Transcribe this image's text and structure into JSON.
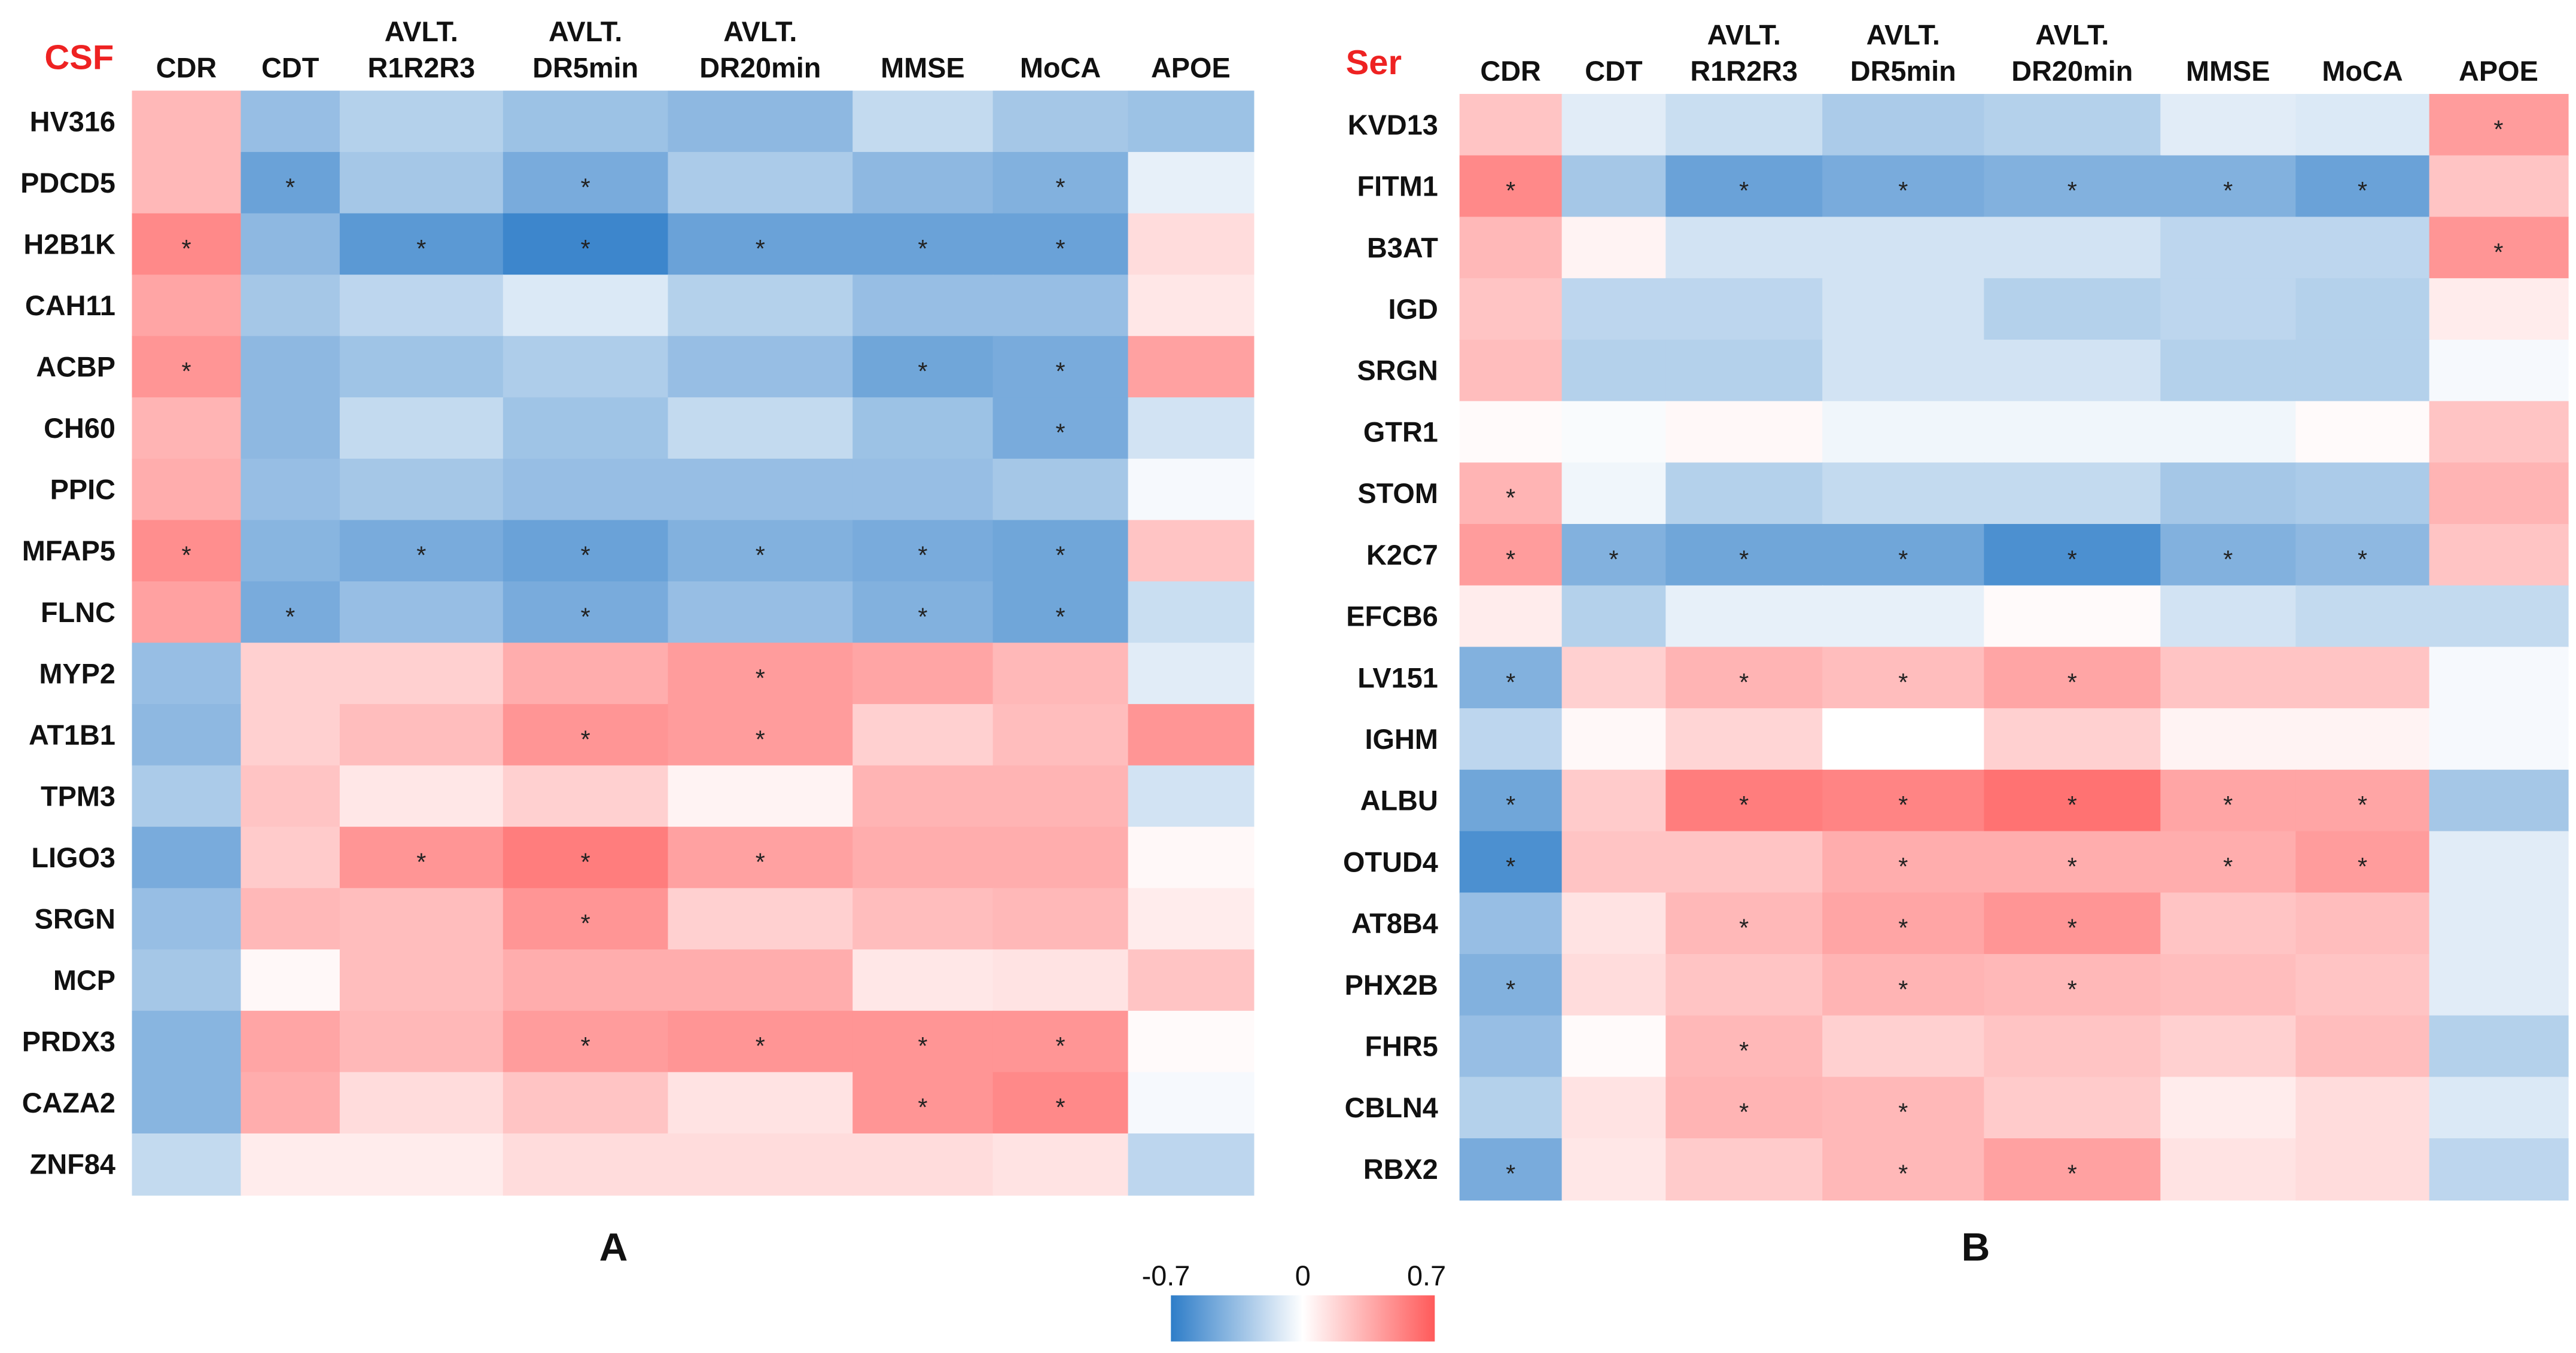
{
  "chart_data": [
    {
      "type": "heatmap",
      "title": "CSF",
      "panel_label": "A",
      "columns": [
        "CDR",
        "CDT",
        "AVLT. R1R2R3",
        "AVLT. DR5min",
        "AVLT. DR20min",
        "MMSE",
        "MoCA",
        "APOE"
      ],
      "rows": [
        "HV316",
        "PDCD5",
        "H2B1K",
        "CAH11",
        "ACBP",
        "CH60",
        "PPIC",
        "MFAP5",
        "FLNC",
        "MYP2",
        "AT1B1",
        "TPM3",
        "LIGO3",
        "SRGN",
        "MCP",
        "PRDX3",
        "CAZA2",
        "ZNF84"
      ],
      "values": [
        [
          0.3,
          -0.35,
          -0.25,
          -0.33,
          -0.38,
          -0.2,
          -0.3,
          -0.33
        ],
        [
          0.3,
          -0.5,
          -0.3,
          -0.45,
          -0.28,
          -0.38,
          -0.42,
          -0.08
        ],
        [
          0.5,
          -0.38,
          -0.55,
          -0.65,
          -0.5,
          -0.5,
          -0.5,
          0.15
        ],
        [
          0.38,
          -0.3,
          -0.22,
          -0.12,
          -0.25,
          -0.35,
          -0.35,
          0.1
        ],
        [
          0.45,
          -0.38,
          -0.32,
          -0.27,
          -0.35,
          -0.48,
          -0.45,
          0.4
        ],
        [
          0.32,
          -0.38,
          -0.2,
          -0.32,
          -0.2,
          -0.33,
          -0.45,
          -0.15
        ],
        [
          0.35,
          -0.35,
          -0.3,
          -0.35,
          -0.35,
          -0.35,
          -0.3,
          -0.03
        ],
        [
          0.48,
          -0.4,
          -0.45,
          -0.5,
          -0.42,
          -0.45,
          -0.48,
          0.25
        ],
        [
          0.4,
          -0.45,
          -0.35,
          -0.45,
          -0.35,
          -0.42,
          -0.48,
          -0.18
        ],
        [
          -0.35,
          0.2,
          0.2,
          0.35,
          0.42,
          0.38,
          0.3,
          -0.1
        ],
        [
          -0.38,
          0.2,
          0.28,
          0.45,
          0.42,
          0.2,
          0.28,
          0.45
        ],
        [
          -0.28,
          0.25,
          0.1,
          0.2,
          0.05,
          0.32,
          0.32,
          -0.15
        ],
        [
          -0.45,
          0.22,
          0.45,
          0.55,
          0.4,
          0.35,
          0.35,
          0.03
        ],
        [
          -0.35,
          0.3,
          0.28,
          0.45,
          0.2,
          0.28,
          0.3,
          0.08
        ],
        [
          -0.3,
          0.03,
          0.28,
          0.35,
          0.35,
          0.1,
          0.12,
          0.25
        ],
        [
          -0.4,
          0.38,
          0.3,
          0.42,
          0.45,
          0.45,
          0.45,
          0.02
        ],
        [
          -0.4,
          0.35,
          0.15,
          0.25,
          0.12,
          0.45,
          0.5,
          -0.03
        ],
        [
          -0.2,
          0.08,
          0.08,
          0.15,
          0.15,
          0.15,
          0.12,
          -0.22
        ]
      ],
      "significant": [
        [],
        [
          1,
          3,
          6
        ],
        [
          0,
          2,
          3,
          4,
          5,
          6
        ],
        [],
        [
          0,
          5,
          6
        ],
        [
          6
        ],
        [],
        [
          0,
          2,
          3,
          4,
          5,
          6
        ],
        [
          1,
          3,
          5,
          6
        ],
        [
          4
        ],
        [
          3,
          4
        ],
        [],
        [
          2,
          3,
          4
        ],
        [
          3
        ],
        [],
        [
          3,
          4,
          5,
          6
        ],
        [
          5,
          6
        ],
        []
      ]
    },
    {
      "type": "heatmap",
      "title": "Ser",
      "panel_label": "B",
      "columns": [
        "CDR",
        "CDT",
        "AVLT. R1R2R3",
        "AVLT. DR5min",
        "AVLT. DR20min",
        "MMSE",
        "MoCA",
        "APOE"
      ],
      "rows": [
        "KVD13",
        "FITM1",
        "B3AT",
        "IGD",
        "SRGN",
        "GTR1",
        "STOM",
        "K2C7",
        "EFCB6",
        "LV151",
        "IGHM",
        "ALBU",
        "OTUD4",
        "AT8B4",
        "PHX2B",
        "FHR5",
        "CBLN4",
        "RBX2"
      ],
      "values": [
        [
          0.25,
          -0.1,
          -0.18,
          -0.28,
          -0.25,
          -0.1,
          -0.12,
          0.42
        ],
        [
          0.5,
          -0.3,
          -0.5,
          -0.45,
          -0.42,
          -0.42,
          -0.5,
          0.25
        ],
        [
          0.3,
          0.05,
          -0.15,
          -0.15,
          -0.15,
          -0.22,
          -0.22,
          0.45
        ],
        [
          0.25,
          -0.22,
          -0.22,
          -0.15,
          -0.25,
          -0.22,
          -0.25,
          0.08
        ],
        [
          0.28,
          -0.25,
          -0.25,
          -0.15,
          -0.15,
          -0.25,
          -0.25,
          -0.03
        ],
        [
          0.02,
          -0.02,
          0.03,
          -0.05,
          -0.05,
          -0.05,
          0.02,
          0.25
        ],
        [
          0.32,
          -0.05,
          -0.25,
          -0.2,
          -0.2,
          -0.3,
          -0.28,
          0.32
        ],
        [
          0.42,
          -0.42,
          -0.48,
          -0.48,
          -0.6,
          -0.42,
          -0.38,
          0.25
        ],
        [
          0.08,
          -0.25,
          -0.08,
          -0.08,
          0.02,
          -0.15,
          -0.2,
          -0.2
        ],
        [
          -0.42,
          0.2,
          0.32,
          0.28,
          0.38,
          0.25,
          0.25,
          -0.03
        ],
        [
          -0.22,
          0.03,
          0.18,
          0.0,
          0.2,
          0.05,
          0.05,
          -0.03
        ],
        [
          -0.48,
          0.22,
          0.55,
          0.52,
          0.6,
          0.38,
          0.38,
          -0.3
        ],
        [
          -0.6,
          0.25,
          0.25,
          0.35,
          0.35,
          0.35,
          0.42,
          -0.1
        ],
        [
          -0.35,
          0.12,
          0.3,
          0.38,
          0.45,
          0.25,
          0.28,
          -0.1
        ],
        [
          -0.42,
          0.15,
          0.25,
          0.32,
          0.3,
          0.28,
          0.25,
          -0.1
        ],
        [
          -0.35,
          0.02,
          0.3,
          0.2,
          0.25,
          0.2,
          0.28,
          -0.25
        ],
        [
          -0.25,
          0.12,
          0.32,
          0.3,
          0.22,
          0.08,
          0.15,
          -0.12
        ],
        [
          -0.45,
          0.1,
          0.22,
          0.3,
          0.4,
          0.12,
          0.15,
          -0.22
        ]
      ],
      "significant": [
        [
          7
        ],
        [
          0,
          2,
          3,
          4,
          5,
          6
        ],
        [
          7
        ],
        [],
        [],
        [],
        [
          0
        ],
        [
          0,
          1,
          2,
          3,
          4,
          5,
          6
        ],
        [],
        [
          0,
          2,
          3,
          4
        ],
        [],
        [
          0,
          2,
          3,
          4,
          5,
          6
        ],
        [
          0,
          3,
          4,
          5,
          6
        ],
        [
          2,
          3,
          4
        ],
        [
          0,
          3,
          4
        ],
        [
          2
        ],
        [
          2,
          3
        ],
        [
          0,
          3,
          4
        ]
      ]
    }
  ],
  "colorbar": {
    "min_label": "-0.7",
    "mid_label": "0",
    "max_label": "0.7",
    "min": -0.7,
    "max": 0.7,
    "neg_color": "#2e7dc8",
    "pos_color": "#ff5a5a"
  },
  "significance_marker": "*"
}
